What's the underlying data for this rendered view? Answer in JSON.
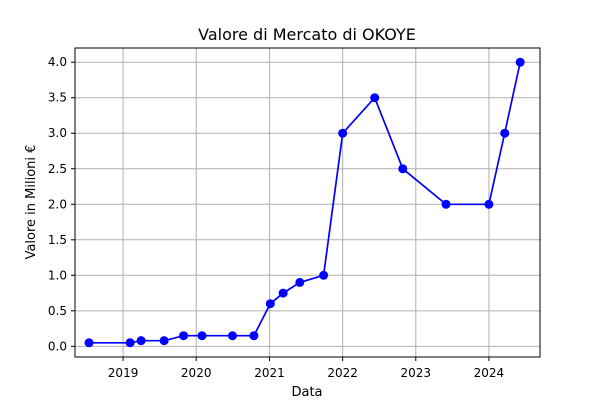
{
  "chart_data": {
    "type": "line",
    "title": "Valore di Mercato di OKOYE",
    "xlabel": "Data",
    "ylabel": "Valore in Milioni €",
    "x_ticks": [
      "2019",
      "2020",
      "2021",
      "2022",
      "2023",
      "2024"
    ],
    "y_ticks": [
      "0.0",
      "0.5",
      "1.0",
      "1.5",
      "2.0",
      "2.5",
      "3.0",
      "3.5",
      "4.0"
    ],
    "xlim": [
      "2018-05-06",
      "2024-09-12"
    ],
    "ylim": [
      -0.15,
      4.2
    ],
    "grid": true,
    "series": [
      {
        "color": "#0000ff",
        "marker": "circle",
        "points": [
          {
            "x": "2018-07-15",
            "y": 0.05
          },
          {
            "x": "2019-02-05",
            "y": 0.05
          },
          {
            "x": "2019-04-01",
            "y": 0.08
          },
          {
            "x": "2019-07-25",
            "y": 0.08
          },
          {
            "x": "2019-10-30",
            "y": 0.15
          },
          {
            "x": "2020-01-30",
            "y": 0.15
          },
          {
            "x": "2020-06-30",
            "y": 0.15
          },
          {
            "x": "2020-10-15",
            "y": 0.15
          },
          {
            "x": "2021-01-05",
            "y": 0.6
          },
          {
            "x": "2021-03-10",
            "y": 0.75
          },
          {
            "x": "2021-06-01",
            "y": 0.9
          },
          {
            "x": "2021-09-28",
            "y": 1.0
          },
          {
            "x": "2022-01-01",
            "y": 3.0
          },
          {
            "x": "2022-06-10",
            "y": 3.5
          },
          {
            "x": "2022-10-28",
            "y": 2.5
          },
          {
            "x": "2023-06-01",
            "y": 2.0
          },
          {
            "x": "2024-01-01",
            "y": 2.0
          },
          {
            "x": "2024-03-20",
            "y": 3.0
          },
          {
            "x": "2024-06-05",
            "y": 4.0
          }
        ]
      }
    ]
  }
}
